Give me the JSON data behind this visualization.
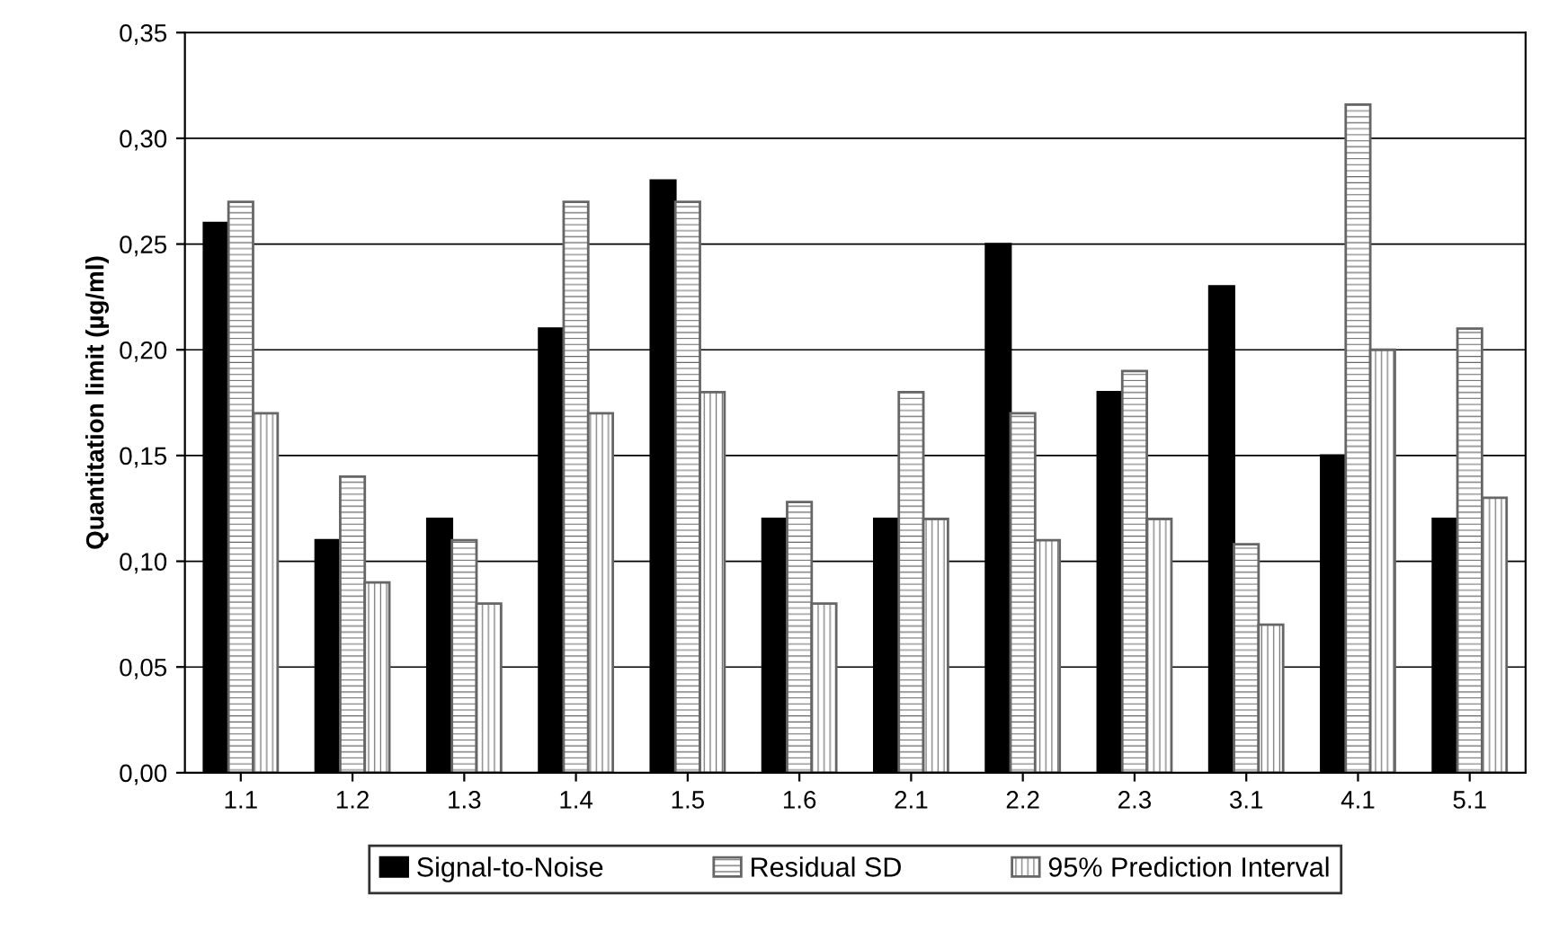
{
  "chart_data": {
    "type": "bar",
    "ylabel": "Quantitation limit (µg/ml)",
    "categories": [
      "1.1",
      "1.2",
      "1.3",
      "1.4",
      "1.5",
      "1.6",
      "2.1",
      "2.2",
      "2.3",
      "3.1",
      "4.1",
      "5.1"
    ],
    "series": [
      {
        "name": "Signal-to-Noise",
        "color": "#000000",
        "values": [
          0.26,
          0.11,
          0.12,
          0.21,
          0.28,
          0.12,
          0.12,
          0.25,
          0.18,
          0.23,
          0.15,
          0.12
        ]
      },
      {
        "name": "Residual SD",
        "color": "#666666",
        "values": [
          0.27,
          0.14,
          0.11,
          0.27,
          0.27,
          0.128,
          0.18,
          0.17,
          0.19,
          0.108,
          0.316,
          0.21
        ]
      },
      {
        "name": "95% Prediction Interval",
        "color": "#666666",
        "values": [
          0.17,
          0.09,
          0.08,
          0.17,
          0.18,
          0.08,
          0.12,
          0.11,
          0.12,
          0.07,
          0.2,
          0.13
        ]
      }
    ],
    "ylim": [
      0,
      0.35
    ],
    "yticks": [
      {
        "value": 0,
        "label": "0,00"
      },
      {
        "value": 0.05,
        "label": "0,05"
      },
      {
        "value": 0.1,
        "label": "0,10"
      },
      {
        "value": 0.15,
        "label": "0,15"
      },
      {
        "value": 0.2,
        "label": "0,20"
      },
      {
        "value": 0.25,
        "label": "0,25"
      },
      {
        "value": 0.3,
        "label": "0,30"
      },
      {
        "value": 0.35,
        "label": "0,35"
      }
    ],
    "grid": "y",
    "legend": "bottom"
  }
}
